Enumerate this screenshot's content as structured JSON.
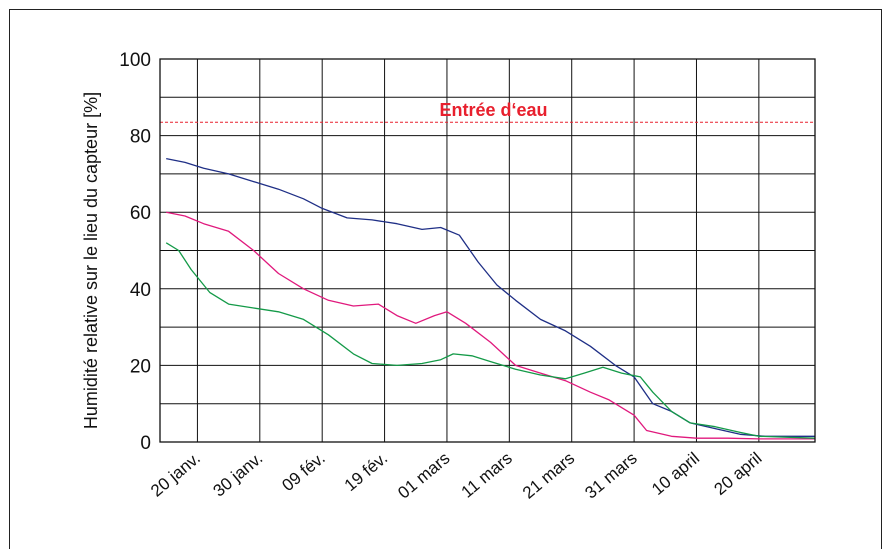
{
  "chart_data": {
    "type": "line",
    "title": "",
    "xlabel": "",
    "ylabel": "Humidité relative sur le lieu du capteur [%]",
    "ylim": [
      0,
      100
    ],
    "xlim": [
      "2014-01-14",
      "2014-04-29"
    ],
    "yticks": [
      0,
      20,
      40,
      60,
      80,
      100
    ],
    "xticks": [
      {
        "date": "2014-01-20",
        "label": "20 janv."
      },
      {
        "date": "2014-01-30",
        "label": "30 janv."
      },
      {
        "date": "2014-02-09",
        "label": "09 fév."
      },
      {
        "date": "2014-02-19",
        "label": "19 fév."
      },
      {
        "date": "2014-03-01",
        "label": "01 mars"
      },
      {
        "date": "2014-03-11",
        "label": "11 mars"
      },
      {
        "date": "2014-03-21",
        "label": "21 mars"
      },
      {
        "date": "2014-03-31",
        "label": "31 mars"
      },
      {
        "date": "2014-04-10",
        "label": "10 april"
      },
      {
        "date": "2014-04-20",
        "label": "20 april"
      }
    ],
    "grid": true,
    "reference_line": {
      "y": 83.5,
      "label": "Entrée d‘eau",
      "color": "#e8202e"
    },
    "series": [
      {
        "color": "#1f2f86",
        "points": [
          [
            "2014-01-15",
            74
          ],
          [
            "2014-01-18",
            73
          ],
          [
            "2014-01-21",
            71.5
          ],
          [
            "2014-01-25",
            70
          ],
          [
            "2014-01-29",
            68
          ],
          [
            "2014-02-02",
            66
          ],
          [
            "2014-02-06",
            63.5
          ],
          [
            "2014-02-09",
            61
          ],
          [
            "2014-02-13",
            58.5
          ],
          [
            "2014-02-17",
            58
          ],
          [
            "2014-02-21",
            57
          ],
          [
            "2014-02-25",
            55.5
          ],
          [
            "2014-02-28",
            56
          ],
          [
            "2014-03-03",
            54
          ],
          [
            "2014-03-06",
            47
          ],
          [
            "2014-03-09",
            41
          ],
          [
            "2014-03-12",
            37
          ],
          [
            "2014-03-16",
            32
          ],
          [
            "2014-03-20",
            29
          ],
          [
            "2014-03-24",
            25
          ],
          [
            "2014-03-28",
            20
          ],
          [
            "2014-03-31",
            17
          ],
          [
            "2014-04-03",
            10
          ],
          [
            "2014-04-06",
            8
          ],
          [
            "2014-04-09",
            5
          ],
          [
            "2014-04-13",
            3.5
          ],
          [
            "2014-04-17",
            2
          ],
          [
            "2014-04-21",
            1.5
          ],
          [
            "2014-04-25",
            1.5
          ],
          [
            "2014-04-29",
            1.5
          ]
        ]
      },
      {
        "color": "#e0197d",
        "points": [
          [
            "2014-01-15",
            60
          ],
          [
            "2014-01-18",
            59
          ],
          [
            "2014-01-21",
            57
          ],
          [
            "2014-01-25",
            55
          ],
          [
            "2014-01-29",
            50
          ],
          [
            "2014-02-02",
            44
          ],
          [
            "2014-02-06",
            40
          ],
          [
            "2014-02-10",
            37
          ],
          [
            "2014-02-14",
            35.5
          ],
          [
            "2014-02-18",
            36
          ],
          [
            "2014-02-21",
            33
          ],
          [
            "2014-02-24",
            31
          ],
          [
            "2014-02-27",
            33
          ],
          [
            "2014-03-01",
            34
          ],
          [
            "2014-03-04",
            31
          ],
          [
            "2014-03-08",
            26
          ],
          [
            "2014-03-12",
            20
          ],
          [
            "2014-03-16",
            18
          ],
          [
            "2014-03-20",
            16
          ],
          [
            "2014-03-24",
            13
          ],
          [
            "2014-03-27",
            11
          ],
          [
            "2014-03-31",
            7
          ],
          [
            "2014-04-02",
            3
          ],
          [
            "2014-04-06",
            1.5
          ],
          [
            "2014-04-10",
            1
          ],
          [
            "2014-04-15",
            1
          ],
          [
            "2014-04-20",
            0.8
          ],
          [
            "2014-04-29",
            0.8
          ]
        ]
      },
      {
        "color": "#149a48",
        "points": [
          [
            "2014-01-15",
            52
          ],
          [
            "2014-01-17",
            50
          ],
          [
            "2014-01-19",
            45
          ],
          [
            "2014-01-22",
            39
          ],
          [
            "2014-01-25",
            36
          ],
          [
            "2014-01-29",
            35
          ],
          [
            "2014-02-02",
            34
          ],
          [
            "2014-02-06",
            32
          ],
          [
            "2014-02-10",
            28
          ],
          [
            "2014-02-14",
            23
          ],
          [
            "2014-02-17",
            20.5
          ],
          [
            "2014-02-21",
            20
          ],
          [
            "2014-02-25",
            20.5
          ],
          [
            "2014-02-28",
            21.5
          ],
          [
            "2014-03-02",
            23
          ],
          [
            "2014-03-05",
            22.5
          ],
          [
            "2014-03-08",
            21
          ],
          [
            "2014-03-12",
            19
          ],
          [
            "2014-03-16",
            17.5
          ],
          [
            "2014-03-20",
            16.5
          ],
          [
            "2014-03-23",
            18
          ],
          [
            "2014-03-26",
            19.5
          ],
          [
            "2014-03-29",
            18
          ],
          [
            "2014-04-01",
            17
          ],
          [
            "2014-04-03",
            13
          ],
          [
            "2014-04-06",
            8
          ],
          [
            "2014-04-09",
            5
          ],
          [
            "2014-04-13",
            4
          ],
          [
            "2014-04-17",
            2.5
          ],
          [
            "2014-04-20",
            1.5
          ],
          [
            "2014-04-29",
            1
          ]
        ]
      }
    ]
  }
}
